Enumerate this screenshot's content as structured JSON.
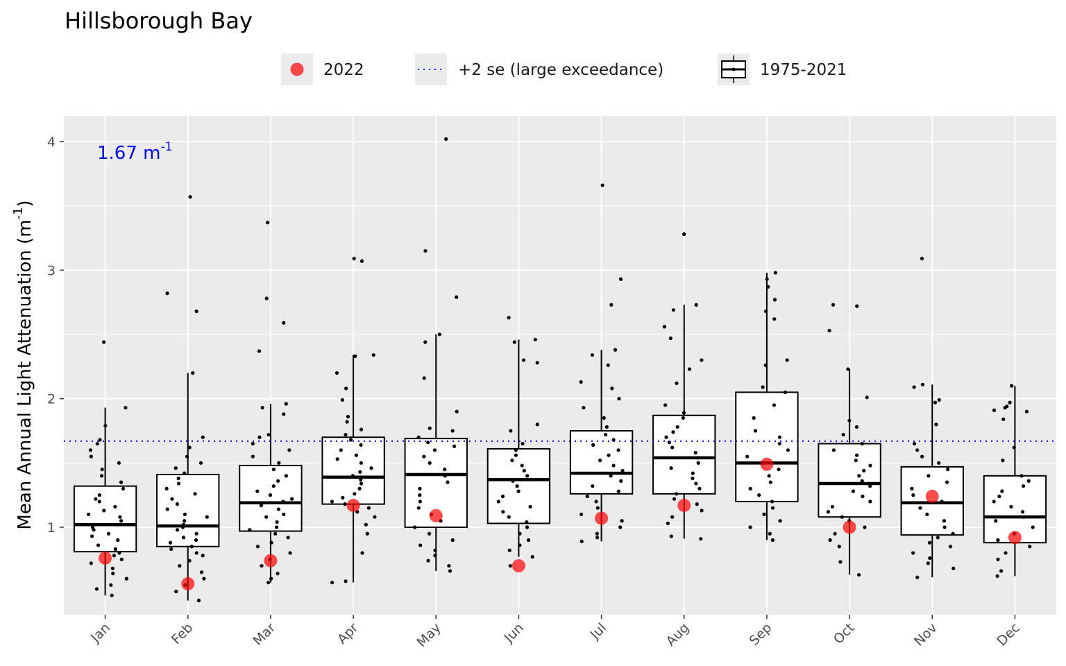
{
  "chart_data": {
    "type": "box",
    "title": "Hillsborough Bay",
    "ylabel": "Mean Annual Light Attenuation (m",
    "ylabel_sup": "-1",
    "ylabel_close": ")",
    "xlabel": "",
    "ylim": [
      0.32,
      4.2
    ],
    "yticks": [
      1,
      2,
      3,
      4
    ],
    "categories": [
      "Jan",
      "Feb",
      "Mar",
      "Apr",
      "May",
      "Jun",
      "Jul",
      "Aug",
      "Sep",
      "Oct",
      "Nov",
      "Dec"
    ],
    "reference_line": {
      "value": 1.67,
      "label": "+2 se (large exceedance)",
      "color": "#0000ff"
    },
    "annotation": {
      "text": "1.67 m",
      "sup": "-1"
    },
    "legend": {
      "position": "top",
      "items": [
        {
          "key": "point",
          "label": "2022",
          "color": "#ff0000"
        },
        {
          "key": "dotted",
          "label": "+2 se (large exceedance)",
          "color": "#0000ff"
        },
        {
          "key": "box",
          "label": "1975-2021",
          "color": "#000000"
        }
      ]
    },
    "box_series": {
      "name": "1975-2021",
      "boxes": [
        {
          "q1": 0.81,
          "median": 1.02,
          "q3": 1.32,
          "whisker_low": 0.47,
          "whisker_high": 1.93
        },
        {
          "q1": 0.85,
          "median": 1.01,
          "q3": 1.41,
          "whisker_low": 0.43,
          "whisker_high": 2.2
        },
        {
          "q1": 0.97,
          "median": 1.19,
          "q3": 1.48,
          "whisker_low": 0.57,
          "whisker_high": 1.96
        },
        {
          "q1": 1.18,
          "median": 1.39,
          "q3": 1.7,
          "whisker_low": 0.57,
          "whisker_high": 2.34
        },
        {
          "q1": 1.0,
          "median": 1.41,
          "q3": 1.69,
          "whisker_low": 0.66,
          "whisker_high": 2.5
        },
        {
          "q1": 1.03,
          "median": 1.37,
          "q3": 1.61,
          "whisker_low": 0.77,
          "whisker_high": 2.46
        },
        {
          "q1": 1.26,
          "median": 1.42,
          "q3": 1.75,
          "whisker_low": 0.89,
          "whisker_high": 2.38
        },
        {
          "q1": 1.26,
          "median": 1.54,
          "q3": 1.87,
          "whisker_low": 0.91,
          "whisker_high": 2.73
        },
        {
          "q1": 1.2,
          "median": 1.5,
          "q3": 2.05,
          "whisker_low": 0.9,
          "whisker_high": 2.98
        },
        {
          "q1": 1.08,
          "median": 1.34,
          "q3": 1.65,
          "whisker_low": 0.63,
          "whisker_high": 2.23
        },
        {
          "q1": 0.94,
          "median": 1.19,
          "q3": 1.47,
          "whisker_low": 0.61,
          "whisker_high": 2.11
        },
        {
          "q1": 0.88,
          "median": 1.08,
          "q3": 1.4,
          "whisker_low": 0.62,
          "whisker_high": 2.1
        }
      ]
    },
    "historic_points": [
      [
        0.47,
        0.52,
        0.55,
        0.6,
        0.64,
        0.68,
        0.72,
        0.75,
        0.78,
        0.8,
        0.83,
        0.86,
        0.9,
        0.93,
        0.95,
        0.98,
        1.0,
        1.02,
        1.05,
        1.08,
        1.1,
        1.13,
        1.16,
        1.2,
        1.22,
        1.25,
        1.3,
        1.35,
        1.4,
        1.45,
        1.5,
        1.55,
        1.6,
        1.65,
        1.68,
        1.79,
        1.93,
        2.44
      ],
      [
        0.43,
        0.5,
        0.55,
        0.6,
        0.65,
        0.7,
        0.74,
        0.78,
        0.8,
        0.83,
        0.85,
        0.88,
        0.9,
        0.92,
        0.95,
        0.98,
        1.0,
        1.02,
        1.05,
        1.08,
        1.1,
        1.14,
        1.18,
        1.22,
        1.26,
        1.3,
        1.34,
        1.38,
        1.42,
        1.46,
        1.5,
        1.55,
        1.62,
        1.7,
        2.2,
        2.68,
        2.82,
        3.57
      ],
      [
        0.57,
        0.6,
        0.64,
        0.7,
        0.75,
        0.8,
        0.85,
        0.88,
        0.92,
        0.95,
        0.98,
        1.0,
        1.04,
        1.08,
        1.1,
        1.14,
        1.17,
        1.2,
        1.22,
        1.25,
        1.28,
        1.32,
        1.36,
        1.4,
        1.45,
        1.5,
        1.55,
        1.6,
        1.65,
        1.7,
        1.72,
        1.88,
        1.93,
        1.96,
        2.37,
        2.59,
        2.78,
        3.37
      ],
      [
        0.57,
        0.58,
        0.8,
        0.95,
        1.02,
        1.08,
        1.12,
        1.15,
        1.18,
        1.2,
        1.23,
        1.26,
        1.3,
        1.34,
        1.37,
        1.4,
        1.43,
        1.46,
        1.5,
        1.53,
        1.56,
        1.6,
        1.64,
        1.68,
        1.72,
        1.76,
        1.82,
        1.86,
        1.99,
        2.08,
        2.2,
        2.33,
        2.34,
        3.07,
        3.09
      ],
      [
        0.66,
        0.7,
        0.74,
        0.78,
        0.82,
        0.86,
        0.9,
        0.95,
        1.0,
        1.05,
        1.1,
        1.15,
        1.2,
        1.25,
        1.3,
        1.35,
        1.4,
        1.45,
        1.5,
        1.55,
        1.6,
        1.63,
        1.66,
        1.7,
        1.75,
        1.77,
        1.9,
        2.16,
        2.44,
        2.5,
        2.79,
        3.15,
        4.02
      ],
      [
        0.7,
        0.77,
        0.82,
        0.86,
        0.9,
        0.95,
        1.0,
        1.04,
        1.08,
        1.12,
        1.16,
        1.2,
        1.24,
        1.28,
        1.32,
        1.36,
        1.4,
        1.44,
        1.48,
        1.52,
        1.56,
        1.6,
        1.65,
        1.75,
        1.8,
        2.28,
        2.3,
        2.44,
        2.46,
        2.63
      ],
      [
        0.89,
        0.92,
        0.95,
        1.0,
        1.05,
        1.1,
        1.15,
        1.2,
        1.24,
        1.28,
        1.32,
        1.36,
        1.4,
        1.44,
        1.48,
        1.52,
        1.56,
        1.6,
        1.64,
        1.68,
        1.72,
        1.78,
        1.85,
        1.93,
        2.0,
        2.08,
        2.13,
        2.26,
        2.34,
        2.38,
        2.73,
        2.93,
        3.66
      ],
      [
        0.91,
        0.93,
        1.03,
        1.08,
        1.13,
        1.18,
        1.22,
        1.26,
        1.3,
        1.34,
        1.38,
        1.42,
        1.46,
        1.5,
        1.54,
        1.58,
        1.62,
        1.66,
        1.7,
        1.74,
        1.78,
        1.85,
        1.89,
        1.95,
        2.12,
        2.23,
        2.3,
        2.47,
        2.56,
        2.69,
        2.73,
        3.28
      ],
      [
        0.9,
        0.95,
        1.0,
        1.05,
        1.1,
        1.15,
        1.2,
        1.25,
        1.3,
        1.35,
        1.4,
        1.45,
        1.5,
        1.55,
        1.6,
        1.65,
        1.7,
        1.75,
        1.85,
        1.95,
        2.05,
        2.09,
        2.26,
        2.3,
        2.62,
        2.68,
        2.77,
        2.87,
        2.93,
        2.98
      ],
      [
        0.63,
        0.73,
        0.85,
        0.9,
        0.95,
        1.0,
        1.05,
        1.08,
        1.12,
        1.16,
        1.2,
        1.24,
        1.28,
        1.32,
        1.36,
        1.4,
        1.44,
        1.48,
        1.52,
        1.56,
        1.6,
        1.65,
        1.72,
        1.78,
        1.83,
        2.01,
        2.23,
        2.53,
        2.72,
        2.73
      ],
      [
        0.61,
        0.68,
        0.72,
        0.76,
        0.8,
        0.85,
        0.88,
        0.92,
        0.95,
        1.0,
        1.05,
        1.1,
        1.15,
        1.2,
        1.25,
        1.3,
        1.35,
        1.4,
        1.45,
        1.5,
        1.55,
        1.6,
        1.65,
        1.8,
        1.97,
        1.99,
        2.09,
        2.11,
        3.09
      ],
      [
        0.62,
        0.66,
        0.75,
        0.8,
        0.85,
        0.9,
        0.95,
        1.0,
        1.05,
        1.08,
        1.12,
        1.16,
        1.2,
        1.24,
        1.28,
        1.32,
        1.36,
        1.4,
        1.52,
        1.62,
        1.84,
        1.9,
        1.91,
        1.93,
        1.94,
        1.97,
        2.1
      ]
    ],
    "points_2022": {
      "name": "2022",
      "values": [
        0.76,
        0.56,
        0.74,
        1.17,
        1.09,
        0.7,
        1.07,
        1.17,
        1.49,
        1.0,
        1.24,
        0.92
      ]
    }
  }
}
